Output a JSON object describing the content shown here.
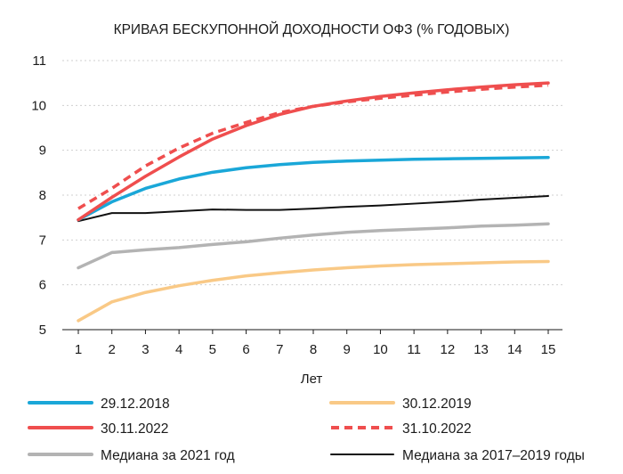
{
  "chart_data": {
    "type": "line",
    "title": "КРИВАЯ БЕСКУПОННОЙ ДОХОДНОСТИ ОФЗ (% ГОДОВЫХ)",
    "xlabel": "Лет",
    "ylabel": "",
    "x": [
      1,
      2,
      3,
      4,
      5,
      6,
      7,
      8,
      9,
      10,
      11,
      12,
      13,
      14,
      15
    ],
    "xlim": [
      1,
      15
    ],
    "ylim": [
      5,
      11
    ],
    "yticks": [
      5,
      6,
      7,
      8,
      9,
      10,
      11
    ],
    "grid": "horizontal-dotted",
    "legend_position": "bottom",
    "series": [
      {
        "name": "29.12.2018",
        "color": "#1aa7d8",
        "style": "solid",
        "values": [
          7.45,
          7.85,
          8.15,
          8.36,
          8.51,
          8.61,
          8.68,
          8.73,
          8.76,
          8.78,
          8.8,
          8.81,
          8.82,
          8.83,
          8.84
        ]
      },
      {
        "name": "30.12.2019",
        "color": "#f9c986",
        "style": "solid",
        "values": [
          5.2,
          5.62,
          5.83,
          5.98,
          6.1,
          6.2,
          6.27,
          6.33,
          6.38,
          6.42,
          6.45,
          6.47,
          6.49,
          6.51,
          6.52
        ]
      },
      {
        "name": "30.11.2022",
        "color": "#ef4e4e",
        "style": "solid",
        "values": [
          7.45,
          7.95,
          8.42,
          8.85,
          9.25,
          9.55,
          9.8,
          9.98,
          10.1,
          10.2,
          10.28,
          10.35,
          10.41,
          10.46,
          10.5
        ]
      },
      {
        "name": "31.10.2022",
        "color": "#ef4e4e",
        "style": "dashed",
        "values": [
          7.7,
          8.15,
          8.65,
          9.05,
          9.38,
          9.62,
          9.84,
          9.98,
          10.08,
          10.16,
          10.23,
          10.3,
          10.36,
          10.41,
          10.45
        ]
      },
      {
        "name": "Медиана за 2021 год",
        "color": "#b3b3b3",
        "style": "solid",
        "values": [
          6.38,
          6.72,
          6.78,
          6.83,
          6.9,
          6.96,
          7.04,
          7.11,
          7.17,
          7.21,
          7.24,
          7.27,
          7.31,
          7.33,
          7.36
        ]
      },
      {
        "name": "Медиана за 2017–2019 годы",
        "color": "#111111",
        "style": "solid",
        "values": [
          7.42,
          7.6,
          7.6,
          7.64,
          7.68,
          7.67,
          7.67,
          7.7,
          7.74,
          7.77,
          7.81,
          7.85,
          7.9,
          7.94,
          7.98
        ]
      }
    ]
  }
}
